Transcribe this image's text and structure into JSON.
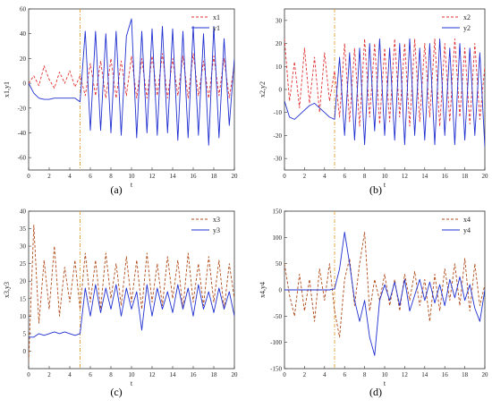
{
  "chart_data": [
    {
      "type": "line",
      "caption": "(a)",
      "xlabel": "t",
      "ylabel": "x1,y1",
      "xlim": [
        0,
        20
      ],
      "ylim": [
        -70,
        60
      ],
      "xticks": [
        0,
        2,
        4,
        6,
        8,
        10,
        12,
        14,
        16,
        18,
        20
      ],
      "yticks": [
        -60,
        -40,
        -20,
        0,
        20,
        40,
        60
      ],
      "switch_time": 5,
      "legend_position": "top-right",
      "series": [
        {
          "name": "x1",
          "color": "#e03030",
          "style": "dashed",
          "x": [
            0,
            0.5,
            1,
            1.5,
            2,
            2.5,
            3,
            3.5,
            4,
            4.5,
            5,
            5.5,
            6,
            6.5,
            7,
            7.5,
            8,
            8.5,
            9,
            9.5,
            10,
            10.5,
            11,
            11.5,
            12,
            12.5,
            13,
            13.5,
            14,
            14.5,
            15,
            15.5,
            16,
            16.5,
            17,
            17.5,
            18,
            18.5,
            19,
            19.5,
            20
          ],
          "values": [
            0,
            6,
            -2,
            14,
            3,
            -4,
            9,
            0,
            10,
            -3,
            6,
            -10,
            16,
            -10,
            18,
            -12,
            20,
            -12,
            18,
            -10,
            22,
            -12,
            20,
            -12,
            22,
            -10,
            24,
            -12,
            20,
            -10,
            22,
            -12,
            24,
            -10,
            18,
            -12,
            22,
            -10,
            20,
            -12,
            15
          ]
        },
        {
          "name": "y1",
          "color": "#2030d0",
          "style": "solid",
          "x": [
            0,
            0.5,
            1,
            1.5,
            2,
            2.5,
            3,
            3.5,
            4,
            4.5,
            5,
            5.5,
            6,
            6.5,
            7,
            7.5,
            8,
            8.5,
            9,
            9.5,
            10,
            10.5,
            11,
            11.5,
            12,
            12.5,
            13,
            13.5,
            14,
            14.5,
            15,
            15.5,
            16,
            16.5,
            17,
            17.5,
            18,
            18.5,
            19,
            19.5,
            20
          ],
          "values": [
            0,
            -8,
            -12,
            -13,
            -13,
            -12,
            -12,
            -12,
            -12,
            -12,
            -15,
            42,
            -38,
            42,
            -38,
            40,
            -40,
            42,
            -42,
            38,
            52,
            -44,
            42,
            -40,
            44,
            -42,
            46,
            -40,
            44,
            -46,
            42,
            -44,
            46,
            -42,
            40,
            -50,
            46,
            -44,
            36,
            -34,
            20
          ]
        }
      ]
    },
    {
      "type": "line",
      "caption": "(b)",
      "xlabel": "t",
      "ylabel": "x2,y2",
      "xlim": [
        0,
        20
      ],
      "ylim": [
        -35,
        35
      ],
      "xticks": [
        0,
        2,
        4,
        6,
        8,
        10,
        12,
        14,
        16,
        18,
        20
      ],
      "yticks": [
        -30,
        -20,
        -10,
        0,
        10,
        20,
        30
      ],
      "switch_time": 5,
      "legend_position": "top-right",
      "series": [
        {
          "name": "x2",
          "color": "#e03030",
          "style": "dashed",
          "x": [
            0,
            0.5,
            1,
            1.5,
            2,
            2.5,
            3,
            3.5,
            4,
            4.5,
            5,
            5.5,
            6,
            6.5,
            7,
            7.5,
            8,
            8.5,
            9,
            9.5,
            10,
            10.5,
            11,
            11.5,
            12,
            12.5,
            13,
            13.5,
            14,
            14.5,
            15,
            15.5,
            16,
            16.5,
            17,
            17.5,
            18,
            18.5,
            19,
            19.5,
            20
          ],
          "values": [
            22,
            -5,
            12,
            -8,
            18,
            -6,
            14,
            -10,
            16,
            -5,
            8,
            -12,
            20,
            -14,
            18,
            -16,
            22,
            -12,
            20,
            -15,
            18,
            -14,
            22,
            -12,
            20,
            -16,
            22,
            -14,
            20,
            -12,
            22,
            -16,
            20,
            -14,
            22,
            -12,
            18,
            -15,
            20,
            -13,
            10
          ]
        },
        {
          "name": "y2",
          "color": "#2030d0",
          "style": "solid",
          "x": [
            0,
            0.5,
            1,
            1.5,
            2,
            2.5,
            3,
            3.5,
            4,
            4.5,
            5,
            5.5,
            6,
            6.5,
            7,
            7.5,
            8,
            8.5,
            9,
            9.5,
            10,
            10.5,
            11,
            11.5,
            12,
            12.5,
            13,
            13.5,
            14,
            14.5,
            15,
            15.5,
            16,
            16.5,
            17,
            17.5,
            18,
            18.5,
            19,
            19.5,
            20
          ],
          "values": [
            -5,
            -12,
            -13,
            -11,
            -9,
            -7,
            -6,
            -8,
            -10,
            -12,
            -13,
            14,
            -20,
            16,
            -22,
            18,
            -24,
            20,
            -18,
            22,
            -20,
            18,
            -22,
            20,
            -24,
            22,
            -20,
            18,
            -22,
            20,
            -24,
            22,
            -20,
            18,
            -24,
            20,
            -22,
            18,
            -20,
            16,
            -25
          ]
        }
      ]
    },
    {
      "type": "line",
      "caption": "(c)",
      "xlabel": "t",
      "ylabel": "x3,y3",
      "xlim": [
        0,
        20
      ],
      "ylim": [
        -5,
        40
      ],
      "xticks": [
        0,
        2,
        4,
        6,
        8,
        10,
        12,
        14,
        16,
        18,
        20
      ],
      "yticks": [
        0,
        5,
        10,
        15,
        20,
        25,
        30,
        35,
        40
      ],
      "switch_time": 5,
      "legend_position": "top-right",
      "series": [
        {
          "name": "x3",
          "color": "#b04a18",
          "style": "dashed",
          "x": [
            0,
            0.5,
            1,
            1.5,
            2,
            2.5,
            3,
            3.5,
            4,
            4.5,
            5,
            5.5,
            6,
            6.5,
            7,
            7.5,
            8,
            8.5,
            9,
            9.5,
            10,
            10.5,
            11,
            11.5,
            12,
            12.5,
            13,
            13.5,
            14,
            14.5,
            15,
            15.5,
            16,
            16.5,
            17,
            17.5,
            18,
            18.5,
            19,
            19.5,
            20
          ],
          "values": [
            -3,
            36,
            8,
            26,
            12,
            30,
            10,
            24,
            14,
            26,
            12,
            28,
            14,
            26,
            12,
            28,
            15,
            25,
            13,
            27,
            14,
            26,
            12,
            28,
            14,
            25,
            13,
            27,
            15,
            26,
            12,
            28,
            14,
            25,
            13,
            27,
            14,
            26,
            12,
            25,
            15
          ]
        },
        {
          "name": "y3",
          "color": "#2030d0",
          "style": "solid",
          "x": [
            0,
            0.5,
            1,
            1.5,
            2,
            2.5,
            3,
            3.5,
            4,
            4.5,
            5,
            5.5,
            6,
            6.5,
            7,
            7.5,
            8,
            8.5,
            9,
            9.5,
            10,
            10.5,
            11,
            11.5,
            12,
            12.5,
            13,
            13.5,
            14,
            14.5,
            15,
            15.5,
            16,
            16.5,
            17,
            17.5,
            18,
            18.5,
            19,
            19.5,
            20
          ],
          "values": [
            4,
            4,
            5,
            4.5,
            5,
            5.5,
            5,
            5.5,
            5,
            4.5,
            5,
            18,
            10,
            19,
            11,
            18,
            12,
            19,
            10,
            18,
            12,
            17,
            6,
            19,
            10,
            18,
            12,
            17,
            11,
            19,
            12,
            18,
            10,
            19,
            12,
            17,
            11,
            18,
            12,
            17,
            10
          ]
        }
      ]
    },
    {
      "type": "line",
      "caption": "(d)",
      "xlabel": "t",
      "ylabel": "x4,y4",
      "xlim": [
        0,
        20
      ],
      "ylim": [
        -150,
        150
      ],
      "xticks": [
        0,
        2,
        4,
        6,
        8,
        10,
        12,
        14,
        16,
        18,
        20
      ],
      "yticks": [
        -150,
        -100,
        -50,
        0,
        50,
        100,
        150
      ],
      "switch_time": 5,
      "legend_position": "top-right",
      "series": [
        {
          "name": "x4",
          "color": "#b04a18",
          "style": "dashed",
          "x": [
            0,
            0.5,
            1,
            1.5,
            2,
            2.5,
            3,
            3.5,
            4,
            4.5,
            5,
            5.5,
            6,
            6.5,
            7,
            7.5,
            8,
            8.5,
            9,
            9.5,
            10,
            10.5,
            11,
            11.5,
            12,
            12.5,
            13,
            13.5,
            14,
            14.5,
            15,
            15.5,
            16,
            16.5,
            17,
            17.5,
            18,
            18.5,
            19,
            19.5,
            20
          ],
          "values": [
            50,
            -10,
            -50,
            30,
            -40,
            20,
            -60,
            40,
            -20,
            50,
            -40,
            -90,
            20,
            60,
            -30,
            50,
            110,
            -40,
            20,
            -20,
            30,
            -30,
            20,
            -40,
            30,
            -20,
            35,
            -30,
            20,
            -60,
            30,
            -40,
            40,
            -20,
            50,
            -30,
            60,
            -40,
            50,
            -30,
            10
          ]
        },
        {
          "name": "y4",
          "color": "#2030d0",
          "style": "solid",
          "x": [
            0,
            0.5,
            1,
            1.5,
            2,
            2.5,
            3,
            3.5,
            4,
            4.5,
            5,
            5.5,
            6,
            6.5,
            7,
            7.5,
            8,
            8.5,
            9,
            9.5,
            10,
            10.5,
            11,
            11.5,
            12,
            12.5,
            13,
            13.5,
            14,
            14.5,
            15,
            15.5,
            16,
            16.5,
            17,
            17.5,
            18,
            18.5,
            19,
            19.5,
            20
          ],
          "values": [
            0,
            0,
            0,
            0,
            0,
            0,
            0,
            0,
            0,
            0,
            2,
            40,
            110,
            50,
            -20,
            -60,
            -20,
            -90,
            -125,
            -20,
            10,
            -20,
            15,
            -30,
            20,
            -40,
            -10,
            20,
            -20,
            15,
            -25,
            10,
            -30,
            20,
            -15,
            25,
            -20,
            10,
            -35,
            -60,
            0
          ]
        }
      ]
    }
  ]
}
